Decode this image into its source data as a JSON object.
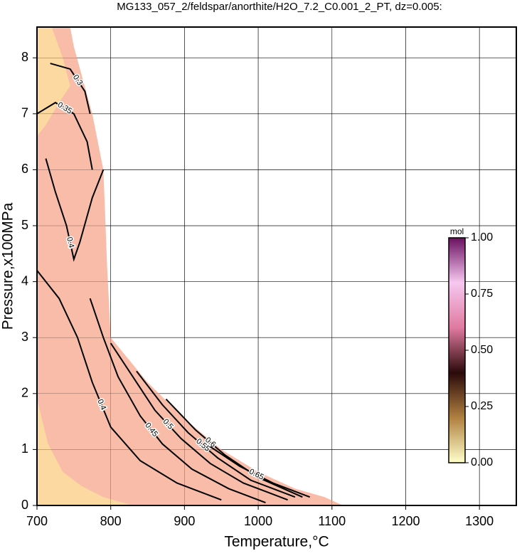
{
  "chart_data": {
    "type": "contour",
    "title": "MG133_057_2/feldspar/anorthite/H2O_7.2_C0.001_2_PT, dz=0.005:",
    "xlabel": "Temperature,°C",
    "ylabel": "Pressure,x100MPa",
    "xlim": [
      700,
      1350
    ],
    "ylim": [
      0,
      8.55
    ],
    "xticks": [
      700,
      800,
      900,
      1000,
      1100,
      1200,
      1300
    ],
    "yticks": [
      0,
      1,
      2,
      3,
      4,
      5,
      6,
      7,
      8
    ],
    "grid": true,
    "fields": [
      {
        "color": "#f9bca9",
        "x": [
          700,
          745,
          750,
          775,
          790,
          793,
          795,
          800,
          850,
          900,
          950,
          1000,
          1050,
          1090,
          1115,
          700
        ],
        "y": [
          8.55,
          8.55,
          8.2,
          7.0,
          6.0,
          5.0,
          4.3,
          3.0,
          2.2,
          1.55,
          1.0,
          0.6,
          0.3,
          0.15,
          0,
          0
        ]
      },
      {
        "color": "#fbd9a0",
        "x": [
          700,
          720,
          735,
          745,
          730,
          712,
          700
        ],
        "y": [
          8.55,
          8.55,
          8.0,
          7.5,
          7.2,
          6.8,
          6.6
        ]
      },
      {
        "color": "#fbd9a0",
        "x": [
          700,
          715,
          735,
          760,
          790,
          830,
          700
        ],
        "y": [
          1.9,
          1.1,
          0.6,
          0.35,
          0.15,
          0,
          0
        ]
      }
    ],
    "contours": [
      {
        "level": 0.3,
        "x": [
          718,
          745,
          765,
          772
        ],
        "y": [
          7.9,
          7.8,
          7.4,
          7.0
        ]
      },
      {
        "level": 0.35,
        "x": [
          700,
          725,
          750,
          768,
          775
        ],
        "y": [
          7.0,
          7.2,
          7.0,
          6.5,
          6.0
        ]
      },
      {
        "level": 0.4,
        "x": [
          712,
          725,
          740,
          750,
          758,
          775,
          790
        ],
        "y": [
          6.2,
          5.6,
          5.0,
          4.4,
          4.7,
          5.5,
          6.0
        ]
      },
      {
        "level": 0.4,
        "x": [
          700,
          730,
          755,
          775,
          800,
          840,
          890,
          950
        ],
        "y": [
          4.2,
          3.7,
          3.0,
          2.2,
          1.4,
          0.8,
          0.4,
          0.1
        ]
      },
      {
        "level": 0.45,
        "x": [
          772,
          790,
          810,
          840,
          870,
          910,
          960,
          1010
        ],
        "y": [
          3.7,
          3.0,
          2.3,
          1.6,
          1.1,
          0.65,
          0.3,
          0.05
        ]
      },
      {
        "level": 0.5,
        "x": [
          800,
          830,
          860,
          895,
          935,
          980,
          1040
        ],
        "y": [
          2.9,
          2.3,
          1.7,
          1.2,
          0.75,
          0.4,
          0.1
        ]
      },
      {
        "level": 0.55,
        "x": [
          835,
          870,
          905,
          945,
          990,
          1050
        ],
        "y": [
          2.4,
          1.8,
          1.3,
          0.85,
          0.45,
          0.15
        ]
      },
      {
        "level": 0.6,
        "x": [
          875,
          915,
          955,
          1000,
          1060
        ],
        "y": [
          1.9,
          1.35,
          0.9,
          0.5,
          0.15
        ]
      },
      {
        "level": 0.65,
        "x": [
          935,
          975,
          1020,
          1070
        ],
        "y": [
          1.05,
          0.7,
          0.4,
          0.15
        ]
      }
    ],
    "colorbar": {
      "label": "mol",
      "colors": [
        "#ffffcc",
        "#b08040",
        "#2a0a0a",
        "#e07aa0",
        "#f6c8f0",
        "#6a1060"
      ],
      "lim": [
        0,
        1
      ],
      "ticks": [
        {
          "value": 0,
          "label": "0.00"
        },
        {
          "value": 0.25,
          "label": "0.25"
        },
        {
          "value": 0.5,
          "label": "0.50"
        },
        {
          "value": 0.75,
          "label": "0.75"
        },
        {
          "value": 1,
          "label": "1.00"
        }
      ]
    }
  }
}
